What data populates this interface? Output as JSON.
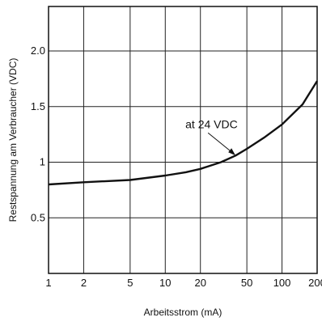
{
  "chart_data": {
    "type": "line",
    "xscale": "log",
    "xlabel": "Arbeitsstrom (mA)",
    "ylabel": "Restspannung am Verbraucher (VDC)",
    "xlim": [
      1,
      200
    ],
    "ylim": [
      0,
      2.4
    ],
    "grid": true,
    "x_ticks": [
      {
        "value": 1,
        "label": "1"
      },
      {
        "value": 2,
        "label": "2"
      },
      {
        "value": 5,
        "label": "5"
      },
      {
        "value": 10,
        "label": "10"
      },
      {
        "value": 20,
        "label": "20"
      },
      {
        "value": 50,
        "label": "50"
      },
      {
        "value": 100,
        "label": "100"
      },
      {
        "value": 200,
        "label": "200"
      }
    ],
    "y_ticks": [
      {
        "value": 0.5,
        "label": "0.5"
      },
      {
        "value": 1,
        "label": "1"
      },
      {
        "value": 1.5,
        "label": "1.5"
      },
      {
        "value": 2,
        "label": "2.0"
      }
    ],
    "series": [
      {
        "name": "at 24 VDC",
        "x": [
          1,
          2,
          5,
          10,
          15,
          20,
          30,
          40,
          50,
          70,
          100,
          150,
          200
        ],
        "y": [
          0.8,
          0.82,
          0.84,
          0.88,
          0.91,
          0.94,
          1.0,
          1.06,
          1.12,
          1.22,
          1.34,
          1.52,
          1.73
        ]
      }
    ],
    "annotation": {
      "text": "at 24 VDC",
      "x": 40,
      "y": 1.06
    }
  }
}
